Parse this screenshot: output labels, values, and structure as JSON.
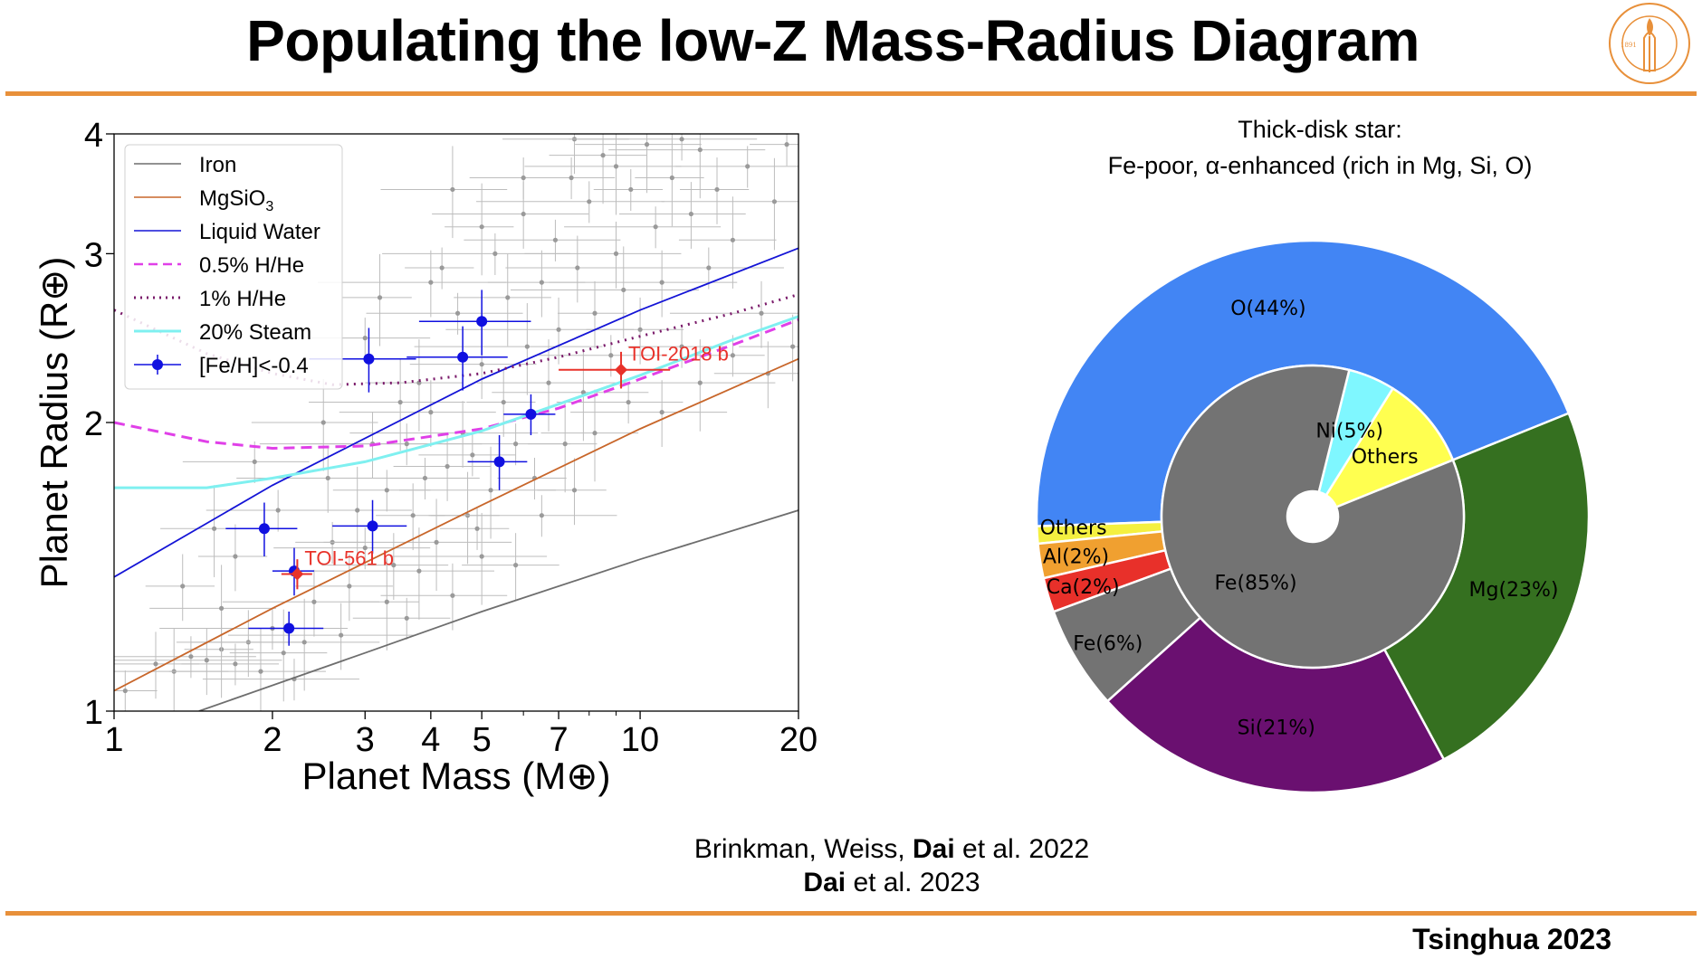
{
  "slide": {
    "title": "Populating the low-Z Mass-Radius Diagram",
    "citation_line1_pre": "Brinkman, Weiss, ",
    "citation_line1_bold": "Dai",
    "citation_line1_post": " et al. 2022",
    "citation_line2_bold": "Dai",
    "citation_line2_post": " et al. 2023",
    "footer": "Tsinghua 2023",
    "logo_text": "CALIFORNIA INSTITUTE OF TECHNOLOGY",
    "logo_year": "1891",
    "accent_color": "#e8903a"
  },
  "chart_data": [
    {
      "type": "scatter",
      "xlabel": "Planet Mass (M⊕)",
      "ylabel": "Planet Radius (R⊕)",
      "xscale": "log",
      "yscale": "log",
      "xlim": [
        1,
        20
      ],
      "ylim": [
        1,
        4
      ],
      "xticks": [
        1,
        2,
        3,
        4,
        5,
        7,
        10,
        20
      ],
      "yticks": [
        1,
        2,
        3,
        4
      ],
      "legend_position": "top-left",
      "grid": false,
      "curves": [
        {
          "name": "Iron",
          "color": "#6e6e6e",
          "style": "solid",
          "points": [
            [
              1.45,
              1.0
            ],
            [
              3.0,
              1.15
            ],
            [
              5.0,
              1.27
            ],
            [
              10.0,
              1.44
            ],
            [
              20.0,
              1.62
            ]
          ]
        },
        {
          "name": "MgSiO3",
          "color": "#c8662a",
          "style": "solid",
          "points": [
            [
              1.0,
              1.05
            ],
            [
              2.0,
              1.28
            ],
            [
              5.0,
              1.64
            ],
            [
              10.0,
              1.97
            ],
            [
              20.0,
              2.33
            ]
          ]
        },
        {
          "name": "Liquid Water",
          "color": "#1414d6",
          "style": "solid",
          "points": [
            [
              1.0,
              1.38
            ],
            [
              2.0,
              1.72
            ],
            [
              5.0,
              2.22
            ],
            [
              10.0,
              2.62
            ],
            [
              20.0,
              3.04
            ]
          ]
        },
        {
          "name": "0.5% H/He",
          "color": "#e040e8",
          "style": "dashed",
          "points": [
            [
              1.0,
              2.0
            ],
            [
              1.5,
              1.91
            ],
            [
              2.0,
              1.88
            ],
            [
              3.0,
              1.89
            ],
            [
              5.0,
              1.97
            ],
            [
              7.0,
              2.07
            ],
            [
              10.0,
              2.22
            ],
            [
              15.0,
              2.41
            ],
            [
              20.0,
              2.56
            ]
          ]
        },
        {
          "name": "1% H/He",
          "color": "#7a1a6a",
          "style": "dotted",
          "points": [
            [
              1.0,
              2.62
            ],
            [
              1.5,
              2.36
            ],
            [
              2.0,
              2.25
            ],
            [
              2.6,
              2.19
            ],
            [
              3.5,
              2.2
            ],
            [
              5.0,
              2.25
            ],
            [
              7.0,
              2.34
            ],
            [
              10.0,
              2.46
            ],
            [
              15.0,
              2.6
            ],
            [
              20.0,
              2.72
            ]
          ]
        },
        {
          "name": "20% Steam",
          "color": "#7ff0f0",
          "style": "solid",
          "points": [
            [
              1.0,
              1.71
            ],
            [
              1.5,
              1.71
            ],
            [
              2.0,
              1.75
            ],
            [
              3.0,
              1.82
            ],
            [
              5.0,
              1.96
            ],
            [
              7.0,
              2.09
            ],
            [
              10.0,
              2.24
            ],
            [
              15.0,
              2.44
            ],
            [
              20.0,
              2.58
            ]
          ]
        }
      ],
      "curve_labels": {
        "iron": "Iron",
        "mgsio3": "MgSiO",
        "mgsio3_sub": "3",
        "water": "Liquid Water",
        "hhe05": "0.5% H/He",
        "hhe1": "1% H/He",
        "steam": "20% Steam",
        "feh": "[Fe/H]<-0.4"
      },
      "series_feh": {
        "name": "[Fe/H]<-0.4",
        "color": "#1010e0",
        "points": [
          {
            "x": 1.93,
            "y": 1.55,
            "xerr": 0.3,
            "yerr": 0.1
          },
          {
            "x": 2.15,
            "y": 1.22,
            "xerr": 0.35,
            "yerr": 0.05
          },
          {
            "x": 2.2,
            "y": 1.4,
            "xerr": 0.2,
            "yerr": 0.08
          },
          {
            "x": 3.05,
            "y": 2.33,
            "xerr": 0.7,
            "yerr": 0.18
          },
          {
            "x": 3.1,
            "y": 1.56,
            "xerr": 0.5,
            "yerr": 0.1
          },
          {
            "x": 4.6,
            "y": 2.34,
            "xerr": 1.0,
            "yerr": 0.18
          },
          {
            "x": 5.0,
            "y": 2.55,
            "xerr": 1.2,
            "yerr": 0.2
          },
          {
            "x": 5.4,
            "y": 1.82,
            "xerr": 0.7,
            "yerr": 0.12
          },
          {
            "x": 6.2,
            "y": 2.04,
            "xerr": 0.7,
            "yerr": 0.1
          }
        ]
      },
      "highlighted": [
        {
          "label": "TOI-561 b",
          "x": 2.23,
          "y": 1.39,
          "xerr": 0.15,
          "yerr": 0.05,
          "color": "#e8322a"
        },
        {
          "label": "TOI-2018 b",
          "x": 9.2,
          "y": 2.27,
          "xerr": 2.2,
          "yerr": 0.1,
          "color": "#e8322a"
        }
      ],
      "background_sample": [
        [
          1.05,
          1.05
        ],
        [
          1.2,
          1.12
        ],
        [
          1.3,
          1.1
        ],
        [
          1.4,
          1.14
        ],
        [
          1.5,
          1.13
        ],
        [
          1.6,
          1.16
        ],
        [
          1.7,
          1.12
        ],
        [
          1.8,
          1.18
        ],
        [
          1.9,
          1.1
        ],
        [
          2.0,
          1.22
        ],
        [
          1.7,
          1.45
        ],
        [
          2.1,
          1.15
        ],
        [
          1.85,
          1.82
        ],
        [
          2.4,
          1.3
        ],
        [
          2.3,
          1.18
        ],
        [
          2.6,
          1.5
        ],
        [
          2.8,
          1.35
        ],
        [
          2.9,
          1.62
        ],
        [
          3.0,
          1.48
        ],
        [
          3.1,
          1.9
        ],
        [
          3.2,
          2.7
        ],
        [
          3.3,
          1.7
        ],
        [
          3.4,
          1.42
        ],
        [
          3.5,
          2.1
        ],
        [
          3.6,
          1.9
        ],
        [
          3.7,
          1.6
        ],
        [
          3.8,
          2.2
        ],
        [
          3.9,
          1.75
        ],
        [
          4.0,
          2.05
        ],
        [
          4.1,
          1.5
        ],
        [
          4.2,
          2.9
        ],
        [
          4.3,
          1.8
        ],
        [
          4.4,
          3.5
        ],
        [
          4.5,
          2.6
        ],
        [
          4.6,
          1.95
        ],
        [
          4.7,
          1.6
        ],
        [
          4.8,
          1.85
        ],
        [
          5.0,
          2.3
        ],
        [
          5.2,
          1.7
        ],
        [
          5.3,
          3.0
        ],
        [
          5.5,
          2.1
        ],
        [
          5.6,
          2.7
        ],
        [
          5.8,
          1.9
        ],
        [
          6.0,
          3.3
        ],
        [
          6.1,
          2.4
        ],
        [
          6.3,
          1.75
        ],
        [
          6.5,
          2.8
        ],
        [
          6.7,
          2.2
        ],
        [
          6.9,
          3.1
        ],
        [
          7.0,
          2.5
        ],
        [
          7.2,
          1.9
        ],
        [
          7.4,
          3.6
        ],
        [
          7.6,
          2.9
        ],
        [
          7.8,
          2.15
        ],
        [
          8.0,
          3.4
        ],
        [
          8.2,
          2.6
        ],
        [
          8.5,
          3.8
        ],
        [
          8.8,
          2.35
        ],
        [
          9.0,
          3.0
        ],
        [
          9.3,
          2.75
        ],
        [
          9.6,
          3.5
        ],
        [
          10.0,
          2.5
        ],
        [
          10.3,
          3.9
        ],
        [
          10.7,
          3.2
        ],
        [
          11.0,
          2.8
        ],
        [
          11.5,
          3.6
        ],
        [
          12.0,
          2.4
        ],
        [
          12.5,
          3.3
        ],
        [
          13.0,
          3.85
        ],
        [
          13.5,
          2.9
        ],
        [
          14.0,
          3.5
        ],
        [
          15.0,
          3.1
        ],
        [
          16.0,
          3.7
        ],
        [
          17.0,
          2.6
        ],
        [
          18.0,
          3.4
        ],
        [
          19.0,
          3.9
        ],
        [
          19.5,
          2.4
        ],
        [
          1.6,
          1.28
        ],
        [
          2.2,
          1.08
        ],
        [
          2.7,
          1.2
        ],
        [
          3.3,
          1.3
        ],
        [
          3.6,
          1.25
        ],
        [
          4.4,
          1.32
        ],
        [
          5.0,
          1.45
        ],
        [
          6.5,
          1.6
        ],
        [
          7.5,
          1.7
        ],
        [
          8.2,
          1.95
        ],
        [
          9.5,
          2.1
        ],
        [
          11.0,
          2.05
        ],
        [
          13.0,
          2.2
        ],
        [
          15.0,
          2.35
        ],
        [
          17.5,
          2.25
        ],
        [
          2.5,
          2.0
        ],
        [
          3.0,
          2.45
        ],
        [
          4.0,
          2.8
        ],
        [
          5.0,
          3.2
        ],
        [
          6.0,
          3.6
        ],
        [
          7.5,
          3.95
        ],
        [
          9.0,
          3.7
        ],
        [
          12.0,
          3.95
        ],
        [
          1.35,
          1.35
        ],
        [
          1.55,
          1.55
        ],
        [
          2.05,
          1.62
        ],
        [
          2.55,
          1.75
        ],
        [
          3.8,
          1.4
        ],
        [
          4.9,
          1.55
        ],
        [
          5.8,
          1.42
        ]
      ]
    },
    {
      "type": "pie",
      "title_line1": "Thick-disk star:",
      "title_line2": "Fe-poor, α-enhanced (rich in Mg, Si, O)",
      "outer": [
        {
          "label": "O",
          "value": 44,
          "display": "O(44%)",
          "color": "#4285f4"
        },
        {
          "label": "Others",
          "value": 1,
          "display": "",
          "color": "#f4f040"
        },
        {
          "label": "Al",
          "value": 2,
          "display": "Al(2%)",
          "color": "#f0a030"
        },
        {
          "label": "Ca",
          "value": 2,
          "display": "Ca(2%)",
          "color": "#e8302a"
        },
        {
          "label": "Fe",
          "value": 6,
          "display": "Fe(6%)",
          "color": "#737373"
        },
        {
          "label": "Si",
          "value": 21,
          "display": "Si(21%)",
          "color": "#6a1070"
        },
        {
          "label": "Mg",
          "value": 23,
          "display": "Mg(23%)",
          "color": "#357020"
        }
      ],
      "outer_others_label": "Others",
      "inner": [
        {
          "label": "Others",
          "value": 10,
          "display": "Others",
          "color": "#ffff50"
        },
        {
          "label": "Ni",
          "value": 5,
          "display": "Ni(5%)",
          "color": "#7ff7ff"
        },
        {
          "label": "Fe",
          "value": 85,
          "display": "Fe(85%)",
          "color": "#737373"
        }
      ]
    }
  ]
}
